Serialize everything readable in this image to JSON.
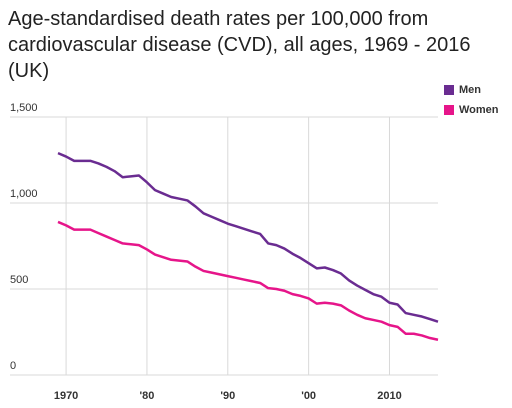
{
  "chart_data": {
    "type": "line",
    "title": "Age-standardised death rates per 100,000 from cardiovascular disease (CVD), all ages, 1969 - 2016 (UK)",
    "x": [
      1969,
      1970,
      1971,
      1972,
      1973,
      1974,
      1975,
      1976,
      1977,
      1978,
      1979,
      1980,
      1981,
      1982,
      1983,
      1984,
      1985,
      1986,
      1987,
      1988,
      1989,
      1990,
      1991,
      1992,
      1993,
      1994,
      1995,
      1996,
      1997,
      1998,
      1999,
      2000,
      2001,
      2002,
      2003,
      2004,
      2005,
      2006,
      2007,
      2008,
      2009,
      2010,
      2011,
      2012,
      2013,
      2014,
      2015,
      2016
    ],
    "series": [
      {
        "name": "Men",
        "color": "#6a2c91",
        "values": [
          1290,
          1270,
          1245,
          1245,
          1245,
          1230,
          1210,
          1185,
          1150,
          1155,
          1160,
          1120,
          1075,
          1055,
          1035,
          1025,
          1015,
          980,
          940,
          920,
          900,
          880,
          865,
          850,
          835,
          820,
          765,
          755,
          735,
          705,
          680,
          650,
          620,
          625,
          610,
          590,
          550,
          520,
          495,
          470,
          455,
          420,
          410,
          360,
          350,
          340,
          325,
          310
        ]
      },
      {
        "name": "Women",
        "color": "#e6158a",
        "values": [
          890,
          870,
          845,
          845,
          845,
          825,
          805,
          785,
          765,
          760,
          755,
          730,
          700,
          685,
          670,
          665,
          660,
          630,
          605,
          595,
          585,
          575,
          565,
          555,
          545,
          535,
          505,
          500,
          490,
          470,
          460,
          445,
          415,
          420,
          415,
          405,
          375,
          350,
          330,
          320,
          310,
          290,
          280,
          240,
          240,
          230,
          215,
          205
        ]
      }
    ],
    "xlim": [
      1969,
      2016
    ],
    "xticks": [
      {
        "value": 1970,
        "label": "1970"
      },
      {
        "value": 1980,
        "label": "'80"
      },
      {
        "value": 1990,
        "label": "'90"
      },
      {
        "value": 2000,
        "label": "'00"
      },
      {
        "value": 2010,
        "label": "2010"
      }
    ],
    "ylim": [
      0,
      1500
    ],
    "yticks": [
      0,
      500,
      {
        "value": 1000,
        "label": "1,000"
      },
      {
        "value": 1500,
        "label": "1,500"
      }
    ],
    "grid": true,
    "legend": "top-right"
  }
}
